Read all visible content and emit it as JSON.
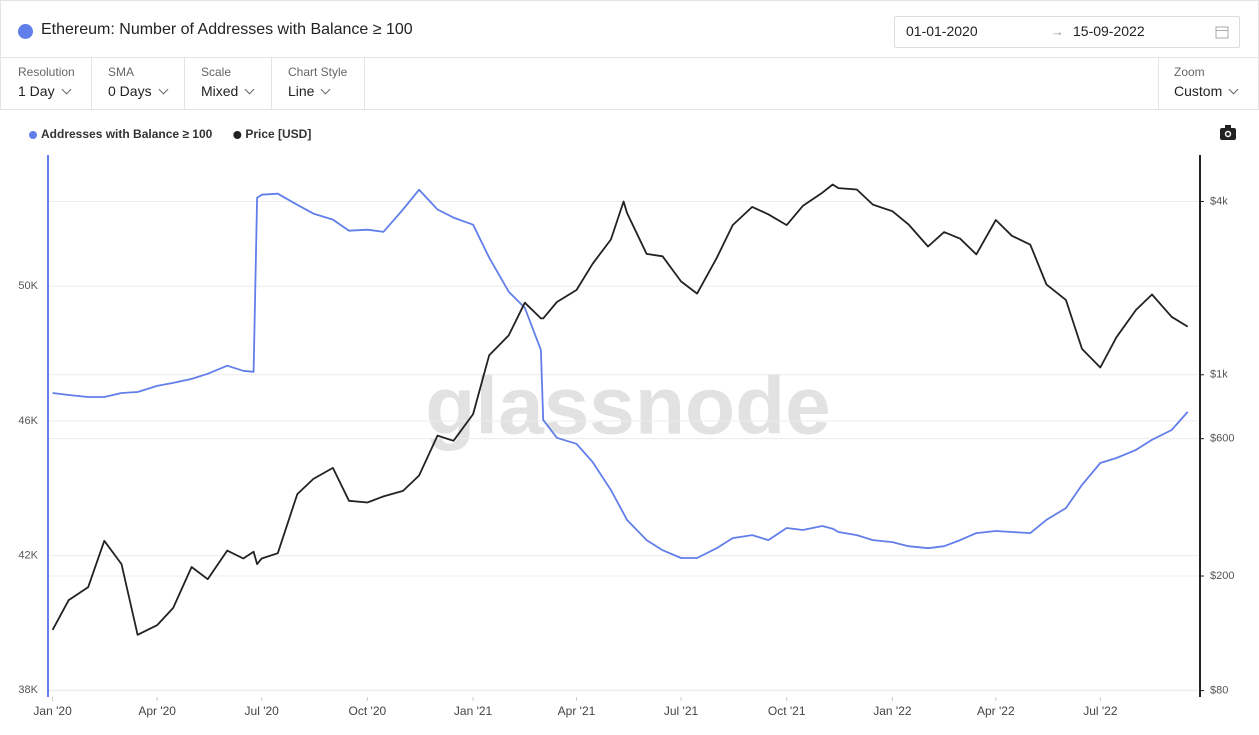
{
  "header": {
    "title": "Ethereum: Number of Addresses with Balance ≥ 100",
    "date_from": "01-01-2020",
    "date_to": "15-09-2022"
  },
  "controls": [
    {
      "label": "Resolution",
      "value": "1 Day"
    },
    {
      "label": "SMA",
      "value": "0 Days"
    },
    {
      "label": "Scale",
      "value": "Mixed"
    },
    {
      "label": "Chart Style",
      "value": "Line"
    }
  ],
  "zoom": {
    "label": "Zoom",
    "value": "Custom"
  },
  "chart_data": {
    "type": "line",
    "watermark": "glassnode",
    "x": [
      "2020-01-01",
      "2020-01-15",
      "2020-02-01",
      "2020-02-15",
      "2020-03-01",
      "2020-03-15",
      "2020-04-01",
      "2020-04-15",
      "2020-05-01",
      "2020-05-15",
      "2020-06-01",
      "2020-06-15",
      "2020-06-24",
      "2020-06-27",
      "2020-07-01",
      "2020-07-15",
      "2020-08-01",
      "2020-08-15",
      "2020-09-01",
      "2020-09-15",
      "2020-10-01",
      "2020-10-15",
      "2020-11-01",
      "2020-11-15",
      "2020-12-01",
      "2020-12-15",
      "2021-01-01",
      "2021-01-15",
      "2021-02-01",
      "2021-02-15",
      "2021-03-01",
      "2021-03-03",
      "2021-03-15",
      "2021-04-01",
      "2021-04-15",
      "2021-05-01",
      "2021-05-12",
      "2021-05-15",
      "2021-06-01",
      "2021-06-15",
      "2021-07-01",
      "2021-07-15",
      "2021-08-01",
      "2021-08-15",
      "2021-09-01",
      "2021-09-15",
      "2021-10-01",
      "2021-10-15",
      "2021-11-01",
      "2021-11-10",
      "2021-11-15",
      "2021-12-01",
      "2021-12-15",
      "2022-01-01",
      "2022-01-15",
      "2022-02-01",
      "2022-02-15",
      "2022-03-01",
      "2022-03-15",
      "2022-04-01",
      "2022-04-15",
      "2022-05-01",
      "2022-05-15",
      "2022-06-01",
      "2022-06-15",
      "2022-07-01",
      "2022-07-15",
      "2022-08-01",
      "2022-08-15",
      "2022-09-01",
      "2022-09-15"
    ],
    "series": [
      {
        "name": "Addresses with Balance ≥ 100",
        "color": "#627eea",
        "axis": "y",
        "values": [
          46830,
          46770,
          46710,
          46710,
          46830,
          46860,
          47040,
          47130,
          47250,
          47400,
          47640,
          47490,
          47460,
          52630,
          52720,
          52750,
          52420,
          52160,
          51980,
          51650,
          51680,
          51620,
          52280,
          52870,
          52280,
          52040,
          51830,
          50850,
          49840,
          49360,
          48110,
          46030,
          45500,
          45320,
          44780,
          43950,
          43250,
          43060,
          42460,
          42160,
          41930,
          41930,
          42220,
          42520,
          42610,
          42460,
          42820,
          42760,
          42880,
          42800,
          42700,
          42610,
          42460,
          42400,
          42280,
          42220,
          42280,
          42460,
          42670,
          42730,
          42700,
          42670,
          43060,
          43410,
          44100,
          44750,
          44900,
          45140,
          45440,
          45730,
          46270
        ]
      },
      {
        "name": "Price [USD]",
        "color": "#222222",
        "axis": "y2",
        "values": [
          130,
          165,
          183,
          265,
          220,
          125,
          135,
          155,
          215,
          195,
          245,
          230,
          243,
          220,
          230,
          240,
          385,
          435,
          475,
          365,
          360,
          378,
          395,
          447,
          615,
          590,
          730,
          1170,
          1370,
          1780,
          1570,
          1570,
          1790,
          1970,
          2430,
          2950,
          4000,
          3650,
          2630,
          2580,
          2110,
          1915,
          2540,
          3310,
          3830,
          3610,
          3310,
          3860,
          4290,
          4580,
          4450,
          4400,
          3900,
          3700,
          3330,
          2790,
          3130,
          2970,
          2620,
          3450,
          3040,
          2830,
          2060,
          1820,
          1230,
          1060,
          1350,
          1680,
          1900,
          1590,
          1470
        ]
      }
    ],
    "xlim": [
      "2019-12-28",
      "2022-09-24"
    ],
    "xticks": [
      {
        "value": "2020-01-01",
        "label": "Jan '20"
      },
      {
        "value": "2020-04-01",
        "label": "Apr '20"
      },
      {
        "value": "2020-07-01",
        "label": "Jul '20"
      },
      {
        "value": "2020-10-01",
        "label": "Oct '20"
      },
      {
        "value": "2021-01-01",
        "label": "Jan '21"
      },
      {
        "value": "2021-04-01",
        "label": "Apr '21"
      },
      {
        "value": "2021-07-01",
        "label": "Jul '21"
      },
      {
        "value": "2021-10-01",
        "label": "Oct '21"
      },
      {
        "value": "2022-01-01",
        "label": "Jan '22"
      },
      {
        "value": "2022-04-01",
        "label": "Apr '22"
      },
      {
        "value": "2022-07-01",
        "label": "Jul '22"
      }
    ],
    "ylim": [
      37800,
      53900
    ],
    "yticks": [
      {
        "value": 38000,
        "label": "38K"
      },
      {
        "value": 42000,
        "label": "42K"
      },
      {
        "value": 46000,
        "label": "46K"
      },
      {
        "value": 50000,
        "label": "50K"
      }
    ],
    "y2lim": [
      76,
      5800
    ],
    "y2scale": "log",
    "y2ticks": [
      {
        "value": 80,
        "label": "$80"
      },
      {
        "value": 200,
        "label": "$200"
      },
      {
        "value": 600,
        "label": "$600"
      },
      {
        "value": 1000,
        "label": "$1k"
      },
      {
        "value": 4000,
        "label": "$4k"
      }
    ],
    "grid": true
  }
}
